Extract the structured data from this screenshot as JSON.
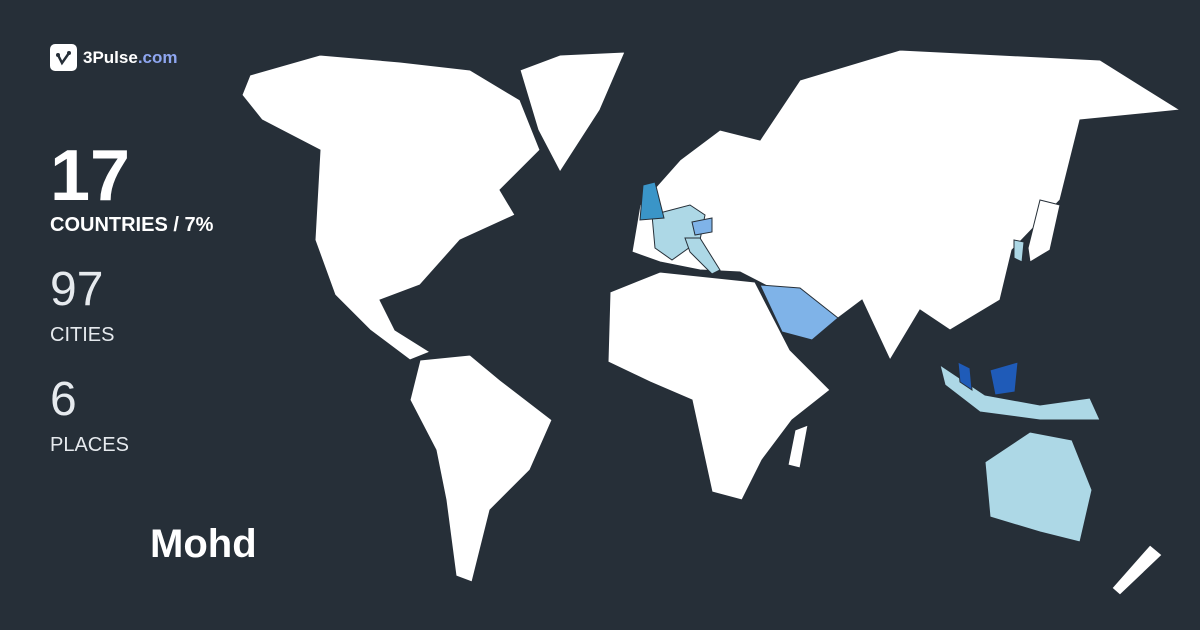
{
  "brand": {
    "name": "3Pulse",
    "domain": ".com",
    "icon": "pulse-check-icon"
  },
  "stats": {
    "countries": {
      "value": "17",
      "label": "COUNTRIES / 7%"
    },
    "cities": {
      "value": "97",
      "label": "CITIES"
    },
    "places": {
      "value": "6",
      "label": "PLACES"
    }
  },
  "user": {
    "name": "Mohd"
  },
  "colors": {
    "background": "#262f38",
    "land": "#ffffff",
    "visited_light": "#add8e6",
    "visited_medium": "#7fb3e8",
    "visited_strong": "#3a95c8",
    "visited_darkest": "#1f5bb8",
    "brand_accent": "#8ea6f0"
  }
}
